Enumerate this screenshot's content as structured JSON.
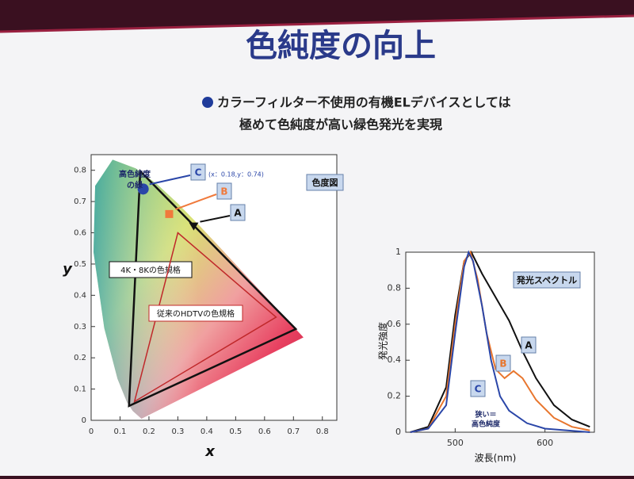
{
  "slide": {
    "title": "色純度の向上",
    "bullet_lines": [
      "カラーフィルター不使用の有機ELデバイスとしては",
      "極めて色純度が高い緑色発光を実現"
    ]
  },
  "chart_data": [
    {
      "type": "chromaticity",
      "title": "色度図",
      "x_label": "x",
      "y_label": "y",
      "xlim": [
        0,
        0.85
      ],
      "ylim": [
        0,
        0.85
      ],
      "xticks": [
        0,
        0.1,
        0.2,
        0.3,
        0.4,
        0.5,
        0.6,
        0.7,
        0.8
      ],
      "yticks": [
        0,
        0.1,
        0.2,
        0.3,
        0.4,
        0.5,
        0.6,
        0.7,
        0.8
      ],
      "spectral_locus": {
        "x": [
          0.1741,
          0.144,
          0.1241,
          0.0913,
          0.0454,
          0.0082,
          0.0139,
          0.0743,
          0.1547,
          0.2296,
          0.3016,
          0.3731,
          0.4441,
          0.5125,
          0.627,
          0.6915,
          0.7347
        ],
        "y": [
          0.005,
          0.0297,
          0.0578,
          0.1327,
          0.295,
          0.5384,
          0.7502,
          0.8338,
          0.8059,
          0.7543,
          0.6923,
          0.6245,
          0.5547,
          0.4866,
          0.3725,
          0.3083,
          0.2653
        ]
      },
      "gamuts": [
        {
          "name": "4K・8Kの色規格",
          "color": "#111111",
          "x": [
            0.708,
            0.17,
            0.131
          ],
          "y": [
            0.292,
            0.797,
            0.046
          ]
        },
        {
          "name": "従来のHDTVの色規格",
          "color": "#c0282a",
          "x": [
            0.64,
            0.3,
            0.15
          ],
          "y": [
            0.33,
            0.6,
            0.06
          ]
        }
      ],
      "series": [
        {
          "name": "C",
          "color": "#2a46a8",
          "marker": "circle",
          "x": [
            0.18
          ],
          "y": [
            0.74
          ],
          "value_labels": [
            "(x：0.18,y：0.74)"
          ]
        },
        {
          "name": "B",
          "color": "#f07a3c",
          "marker": "square",
          "x": [
            0.27
          ],
          "y": [
            0.66
          ]
        },
        {
          "name": "A",
          "color": "#111111",
          "marker": "triangle",
          "x": [
            0.355
          ],
          "y": [
            0.62
          ]
        }
      ],
      "annotations": [
        [
          "高色純度",
          "の緑"
        ]
      ]
    },
    {
      "type": "line",
      "title": "発光スペクトル",
      "x_label": "波長(nm)",
      "y_label": "発光強度",
      "xlim": [
        445,
        655
      ],
      "ylim": [
        0,
        1
      ],
      "xticks": [
        500,
        600
      ],
      "yticks": [
        0,
        0.2,
        0.4,
        0.6,
        0.8,
        1
      ],
      "series": [
        {
          "name": "A",
          "color": "#111111",
          "x": [
            450,
            470,
            490,
            500,
            510,
            518,
            530,
            545,
            560,
            575,
            590,
            610,
            630,
            650
          ],
          "values": [
            0,
            0.03,
            0.25,
            0.65,
            0.95,
            1,
            0.88,
            0.75,
            0.62,
            0.45,
            0.3,
            0.15,
            0.07,
            0.03
          ]
        },
        {
          "name": "B",
          "color": "#e8762e",
          "x": [
            450,
            470,
            490,
            500,
            510,
            517,
            525,
            535,
            545,
            555,
            565,
            575,
            590,
            610,
            630,
            650
          ],
          "values": [
            0,
            0.02,
            0.2,
            0.6,
            0.95,
            1,
            0.85,
            0.55,
            0.35,
            0.3,
            0.34,
            0.3,
            0.18,
            0.08,
            0.03,
            0.01
          ]
        },
        {
          "name": "C",
          "color": "#2a46a8",
          "x": [
            450,
            470,
            490,
            500,
            510,
            515,
            520,
            530,
            540,
            550,
            560,
            580,
            600,
            650
          ],
          "values": [
            0,
            0.02,
            0.15,
            0.55,
            0.92,
            1,
            0.95,
            0.7,
            0.4,
            0.2,
            0.12,
            0.05,
            0.02,
            0
          ]
        }
      ],
      "annotations": [
        [
          "狭い＝",
          "高色純度"
        ]
      ]
    }
  ]
}
